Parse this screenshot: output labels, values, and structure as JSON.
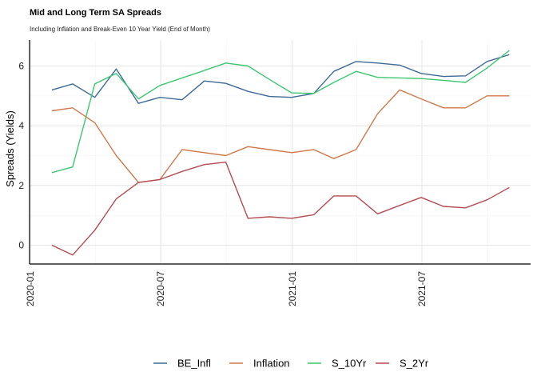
{
  "chart_data": {
    "type": "line",
    "title": "Mid and Long Term SA Spreads",
    "subtitle": "Including Inflation and Break-Even 10 Year Yield (End of Month)",
    "xlabel": "",
    "ylabel": "Spreads (Yields)",
    "x_ticks": [
      "2020-01",
      "2020-07",
      "2021-01",
      "2021-07"
    ],
    "y_ticks": [
      0,
      2,
      4,
      6
    ],
    "ylim": [
      -0.6,
      6.8
    ],
    "grid": true,
    "legend_position": "bottom",
    "x": [
      "2020-01-31",
      "2020-02-29",
      "2020-03-31",
      "2020-04-30",
      "2020-05-31",
      "2020-06-30",
      "2020-07-31",
      "2020-08-31",
      "2020-09-30",
      "2020-10-31",
      "2020-11-30",
      "2020-12-31",
      "2021-01-31",
      "2021-02-28",
      "2021-03-31",
      "2021-04-30",
      "2021-05-31",
      "2021-06-30",
      "2021-07-31",
      "2021-08-31",
      "2021-09-30",
      "2021-10-31",
      "2021-11-30"
    ],
    "series": [
      {
        "name": "BE_Infl",
        "color": "#3d6a96",
        "values": [
          5.2,
          5.4,
          4.95,
          5.9,
          4.75,
          4.95,
          4.87,
          5.5,
          5.42,
          5.15,
          4.98,
          4.95,
          5.08,
          5.82,
          6.15,
          6.1,
          6.03,
          5.75,
          5.65,
          5.67,
          6.15,
          6.38,
          null
        ]
      },
      {
        "name": "Inflation",
        "color": "#d0784a",
        "values": [
          4.5,
          4.6,
          4.1,
          3.0,
          2.1,
          2.2,
          3.2,
          3.1,
          3.0,
          3.3,
          3.2,
          3.1,
          3.2,
          2.9,
          3.2,
          4.4,
          5.2,
          4.9,
          4.6,
          4.6,
          5.0,
          5.0,
          null
        ]
      },
      {
        "name": "S_10Yr",
        "color": "#3ec770",
        "values": [
          2.43,
          2.62,
          5.4,
          5.75,
          4.9,
          5.35,
          5.6,
          5.85,
          6.1,
          6.0,
          5.55,
          5.1,
          5.08,
          5.45,
          5.82,
          5.62,
          5.6,
          5.58,
          5.52,
          5.45,
          5.93,
          6.52,
          null
        ]
      },
      {
        "name": "S_2Yr",
        "color": "#b34b51",
        "values": [
          0.0,
          -0.33,
          0.5,
          1.55,
          2.1,
          2.2,
          2.47,
          2.7,
          2.78,
          0.9,
          0.95,
          0.9,
          1.02,
          1.65,
          1.65,
          1.05,
          1.33,
          1.6,
          1.3,
          1.25,
          1.52,
          1.93,
          null
        ]
      }
    ]
  }
}
